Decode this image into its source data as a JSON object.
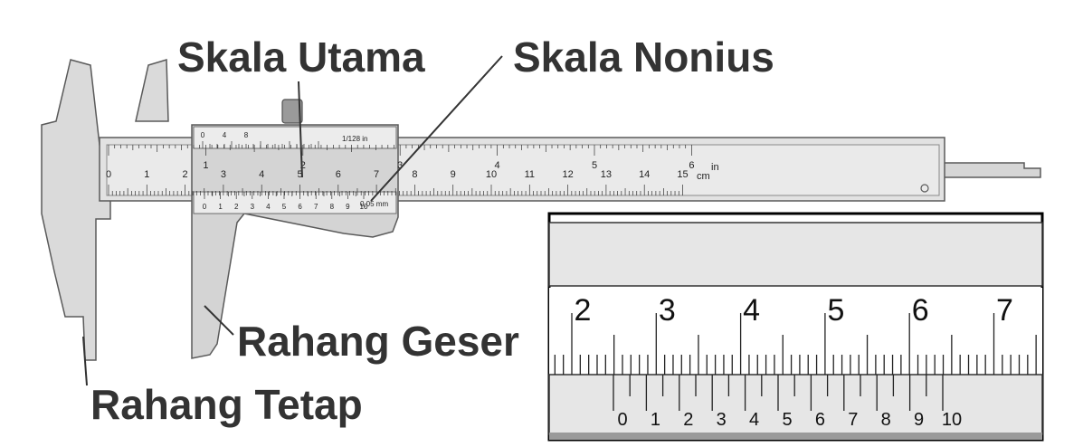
{
  "labels": {
    "main_scale": "Skala Utama",
    "vernier_scale": "Skala Nonius",
    "sliding_jaw": "Rahang Geser",
    "fixed_jaw": "Rahang Tetap"
  },
  "caliper": {
    "cm_numbers": [
      "0",
      "1",
      "2",
      "3",
      "4",
      "5",
      "6",
      "7",
      "8",
      "9",
      "10",
      "11",
      "12",
      "13",
      "14",
      "15"
    ],
    "inch_numbers": [
      "1",
      "2",
      "3",
      "4",
      "5",
      "6"
    ],
    "unit_cm": "cm",
    "unit_in": "in",
    "upper_vernier_numbers": [
      "0",
      "4",
      "8"
    ],
    "upper_vernier_unit": "1/128 in",
    "lower_vernier_numbers": [
      "0",
      "1",
      "2",
      "3",
      "4",
      "5",
      "6",
      "7",
      "8",
      "9",
      "10"
    ],
    "lower_vernier_unit": "0,05 mm"
  },
  "zoom": {
    "main_numbers": [
      "2",
      "3",
      "4",
      "5",
      "6",
      "7"
    ],
    "vernier_numbers": [
      "0",
      "1",
      "2",
      "3",
      "4",
      "5",
      "6",
      "7",
      "8",
      "9",
      "10"
    ]
  },
  "colors": {
    "body": "#dcdcdc",
    "outline": "#5a5a5a",
    "label_text": "#333333",
    "zoom_border": "#000000"
  }
}
